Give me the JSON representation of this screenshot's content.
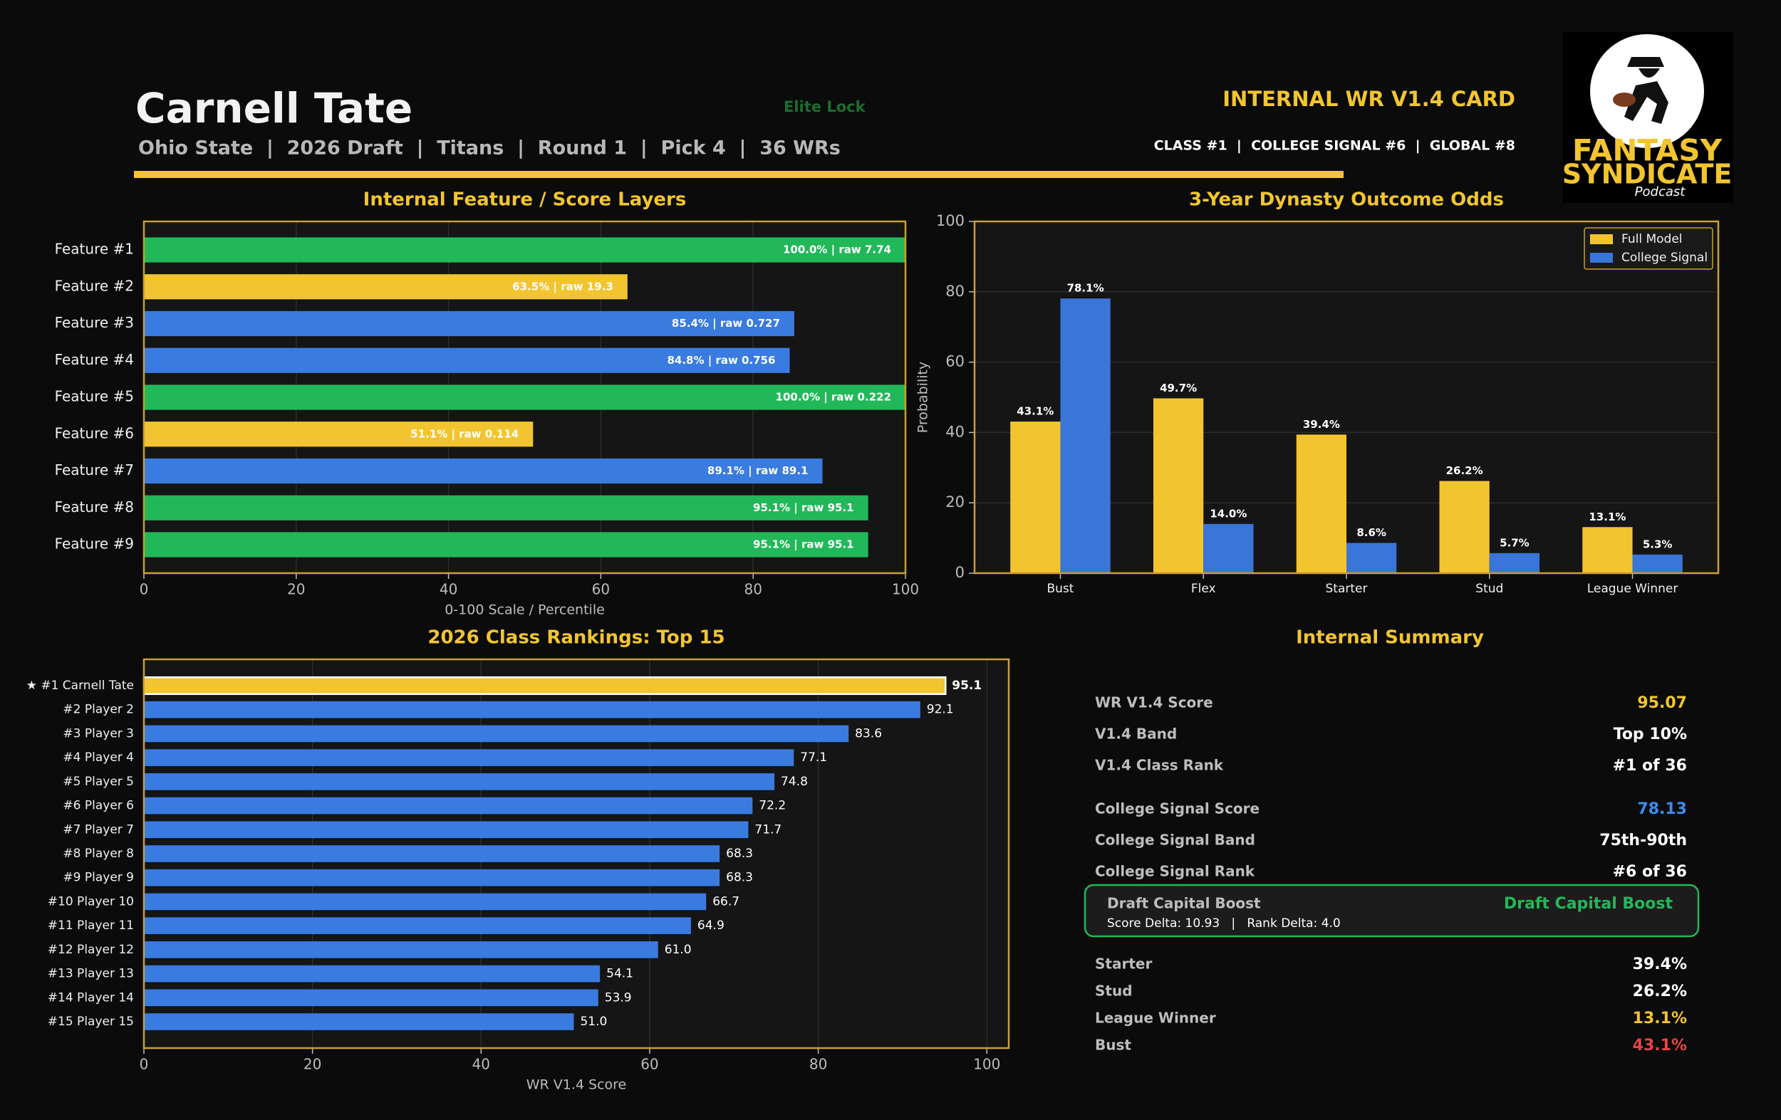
{
  "header": {
    "name": "Carnell Tate",
    "meta": "Ohio State  |  2026 Draft  |  Titans  |  Round 1  |  Pick 4  |  36 WRs",
    "tag": "Elite Lock",
    "card_title": "INTERNAL WR V1.4 CARD",
    "ranks": "CLASS #1  |  COLLEGE SIGNAL #6  |  GLOBAL #8"
  },
  "logo": {
    "line1": "FANTASY",
    "line2": "SYNDICATE",
    "line3": "Podcast"
  },
  "chart_data": [
    {
      "type": "bar",
      "orientation": "horizontal",
      "title": "Internal Feature / Score Layers",
      "categories": [
        "Feature #1",
        "Feature #2",
        "Feature #3",
        "Feature #4",
        "Feature #5",
        "Feature #6",
        "Feature #7",
        "Feature #8",
        "Feature #9"
      ],
      "values": [
        100,
        63.5,
        85.4,
        84.8,
        100,
        51.1,
        89.1,
        95.1,
        95.1
      ],
      "value_labels": [
        "100.0% | raw 7.74",
        "63.5% | raw 19.3",
        "85.4% | raw 0.727",
        "84.8% | raw 0.756",
        "100.0% | raw 0.222",
        "51.1% | raw 0.114",
        "89.1% | raw 89.1",
        "95.1% | raw 95.1",
        "95.1% | raw 95.1"
      ],
      "colors": [
        "#22b85a",
        "#f2c530",
        "#3a7be0",
        "#3a7be0",
        "#22b85a",
        "#f2c530",
        "#3a7be0",
        "#22b85a",
        "#22b85a"
      ],
      "xlabel": "0-100 Scale / Percentile",
      "xlim": [
        0,
        100
      ],
      "xticks": [
        0,
        20,
        40,
        60,
        80,
        100
      ],
      "grid": true
    },
    {
      "type": "bar",
      "orientation": "vertical",
      "title": "3-Year Dynasty Outcome Odds",
      "categories": [
        "Bust",
        "Flex",
        "Starter",
        "Stud",
        "League Winner"
      ],
      "series": [
        {
          "name": "Full Model",
          "color": "#f2c530",
          "values": [
            43.1,
            49.7,
            39.4,
            26.2,
            13.1
          ],
          "value_labels": [
            "43.1%",
            "49.7%",
            "39.4%",
            "26.2%",
            "13.1%"
          ]
        },
        {
          "name": "College Signal",
          "color": "#3a75d8",
          "values": [
            78.1,
            14.0,
            8.6,
            5.7,
            5.3
          ],
          "value_labels": [
            "78.1%",
            "14.0%",
            "8.6%",
            "5.7%",
            "5.3%"
          ]
        }
      ],
      "ylabel": "Probability",
      "ylim": [
        0,
        100
      ],
      "yticks": [
        0,
        20,
        40,
        60,
        80,
        100
      ],
      "grid": true,
      "legend": "upper right"
    },
    {
      "type": "bar",
      "orientation": "horizontal",
      "title": "2026 Class Rankings: Top 15",
      "categories": [
        "★ #1 Carnell Tate",
        "#2 Player 2",
        "#3 Player 3",
        "#4 Player 4",
        "#5 Player 5",
        "#6 Player 6",
        "#7 Player 7",
        "#8 Player 8",
        "#9 Player 9",
        "#10 Player 10",
        "#11 Player 11",
        "#12 Player 12",
        "#13 Player 13",
        "#14 Player 14",
        "#15 Player 15"
      ],
      "values": [
        95.1,
        92.1,
        83.6,
        77.1,
        74.8,
        72.2,
        71.7,
        68.3,
        68.3,
        66.7,
        64.9,
        61.0,
        54.1,
        53.9,
        51.0
      ],
      "value_labels": [
        "95.1",
        "92.1",
        "83.6",
        "77.1",
        "74.8",
        "72.2",
        "71.7",
        "68.3",
        "68.3",
        "66.7",
        "64.9",
        "61.0",
        "54.1",
        "53.9",
        "51.0"
      ],
      "colors": [
        "#f2c530",
        "#3a7be0",
        "#3a7be0",
        "#3a7be0",
        "#3a7be0",
        "#3a7be0",
        "#3a7be0",
        "#3a7be0",
        "#3a7be0",
        "#3a7be0",
        "#3a7be0",
        "#3a7be0",
        "#3a7be0",
        "#3a7be0",
        "#3a7be0"
      ],
      "xlabel": "WR V1.4 Score",
      "xlim": [
        0,
        102.6
      ],
      "xticks": [
        0,
        20,
        40,
        60,
        80,
        100
      ],
      "grid": true
    }
  ],
  "summary": {
    "title": "Internal Summary",
    "rows": [
      {
        "label": "WR V1.4 Score",
        "value": "95.07",
        "color": "#f2c530"
      },
      {
        "label": "V1.4 Band",
        "value": "Top 10%",
        "color": "#ffffff"
      },
      {
        "label": "V1.4 Class Rank",
        "value": "#1 of 36",
        "color": "#ffffff"
      },
      {
        "label": "College Signal Score",
        "value": "78.13",
        "color": "#3a8ef0"
      },
      {
        "label": "College Signal Band",
        "value": "75th-90th",
        "color": "#ffffff"
      },
      {
        "label": "College Signal Rank",
        "value": "#6 of 36",
        "color": "#ffffff"
      }
    ],
    "boost": {
      "label": "Draft Capital Boost",
      "value": "Draft Capital Boost",
      "detail": "Score Delta: 10.93   |   Rank Delta: 4.0"
    },
    "outcomes": [
      {
        "label": "Starter",
        "value": "39.4%",
        "color": "#ffffff"
      },
      {
        "label": "Stud",
        "value": "26.2%",
        "color": "#ffffff"
      },
      {
        "label": "League Winner",
        "value": "13.1%",
        "color": "#f2c530"
      },
      {
        "label": "Bust",
        "value": "43.1%",
        "color": "#e84545"
      }
    ]
  }
}
